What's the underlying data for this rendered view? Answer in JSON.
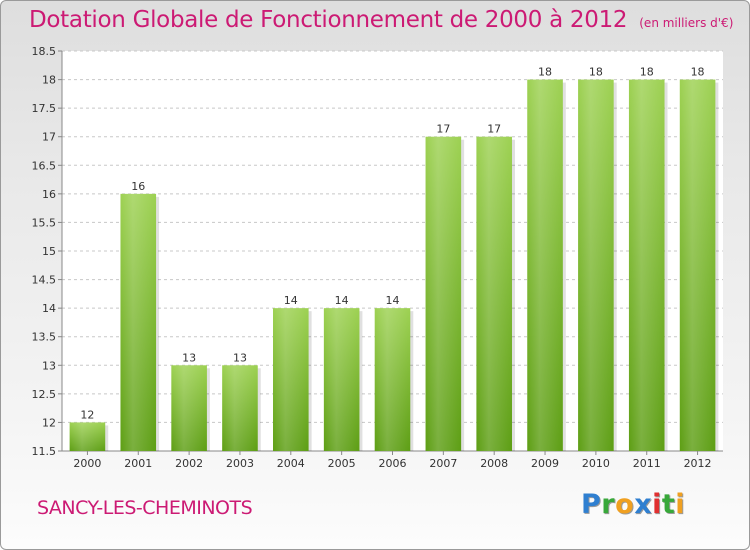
{
  "header": {
    "title": "Dotation Globale de Fonctionnement de 2000 à 2012",
    "subtitle": "(en milliers d'€)"
  },
  "footer": {
    "place": "SANCY-LES-CHEMINOTS",
    "logo_letters": [
      {
        "char": "P",
        "color": "#2f7fd0"
      },
      {
        "char": "r",
        "color": "#38a83a"
      },
      {
        "char": "o",
        "color": "#f0a020"
      },
      {
        "char": "x",
        "color": "#2f7fd0"
      },
      {
        "char": "i",
        "color": "#e03030"
      },
      {
        "char": "t",
        "color": "#38a83a"
      },
      {
        "char": "i",
        "color": "#f0a020"
      }
    ]
  },
  "colors": {
    "title": "#cc1a74",
    "bar_light": "#9dd152",
    "bar_dark": "#5d9e14",
    "grid": "#c8c8c8"
  },
  "chart_data": {
    "type": "bar",
    "title": "Dotation Globale de Fonctionnement de 2000 à 2012",
    "subtitle": "(en milliers d'€)",
    "xlabel": "",
    "ylabel": "",
    "categories": [
      "2000",
      "2001",
      "2002",
      "2003",
      "2004",
      "2005",
      "2006",
      "2007",
      "2008",
      "2009",
      "2010",
      "2011",
      "2012"
    ],
    "values": [
      12,
      16,
      13,
      13,
      14,
      14,
      14,
      17,
      17,
      18,
      18,
      18,
      18
    ],
    "value_labels": [
      "12",
      "16",
      "13",
      "13",
      "14",
      "14",
      "14",
      "17",
      "17",
      "18",
      "18",
      "18",
      "18"
    ],
    "ylim": [
      11.5,
      18.5
    ],
    "yticks": [
      11.5,
      12,
      12.5,
      13,
      13.5,
      14,
      14.5,
      15,
      15.5,
      16,
      16.5,
      17,
      17.5,
      18,
      18.5
    ],
    "ytick_labels": [
      "11.5",
      "12",
      "12.5",
      "13",
      "13.5",
      "14",
      "14.5",
      "15",
      "15.5",
      "16",
      "16.5",
      "17",
      "17.5",
      "18",
      "18.5"
    ],
    "grid": true,
    "legend": "none"
  }
}
